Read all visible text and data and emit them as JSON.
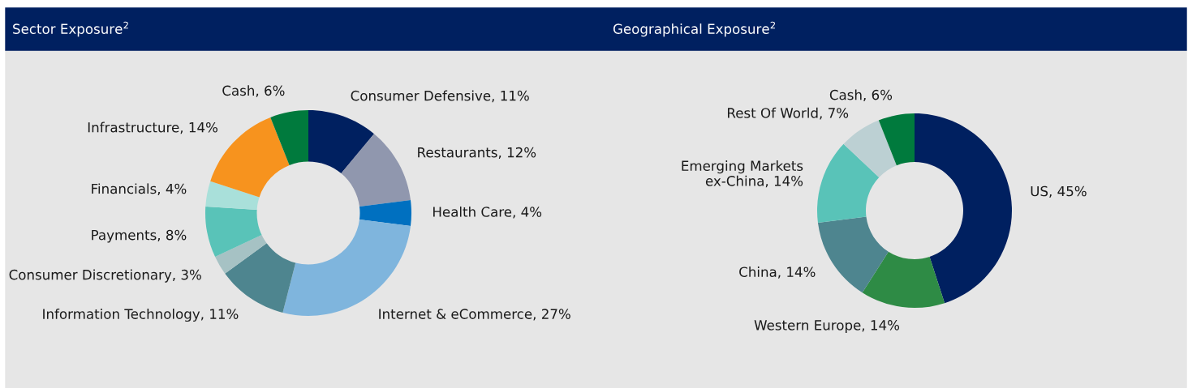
{
  "chart_data": [
    {
      "type": "donut",
      "title": "Sector Exposure$^{2}$",
      "categories": [
        "Consumer Defensive",
        "Restaurants",
        "Health Care",
        "Internet & eCommerce",
        "Information Technology",
        "Consumer Discretionary",
        "Payments",
        "Financials",
        "Infrastructure",
        "Cash"
      ],
      "values": [
        11,
        12,
        4,
        27,
        11,
        3,
        8,
        4,
        14,
        6
      ],
      "value_labels": [
        "11%",
        "12%",
        "4%",
        "27%",
        "11%",
        "3%",
        "8%",
        "4%",
        "14%",
        "6%"
      ],
      "colors": [
        "#002060",
        "#9097ae",
        "#0070c0",
        "#7fb5dd",
        "#4e858f",
        "#a6c2c4",
        "#59c3b8",
        "#a9e0da",
        "#f7931e",
        "#007a3d"
      ]
    },
    {
      "type": "donut",
      "title": "Geographical Exposure$^{2}$",
      "categories": [
        "US",
        "Western Europe",
        "China",
        "Emerging Markets ex-China",
        "Rest Of World",
        "Cash"
      ],
      "values": [
        45,
        14,
        14,
        14,
        7,
        6
      ],
      "value_labels": [
        "45%",
        "14%",
        "14%",
        "14%",
        "7%",
        "6%"
      ],
      "colors": [
        "#002060",
        "#2e8b45",
        "#4e858f",
        "#59c3b8",
        "#bcd0d3",
        "#007a3d"
      ]
    }
  ]
}
